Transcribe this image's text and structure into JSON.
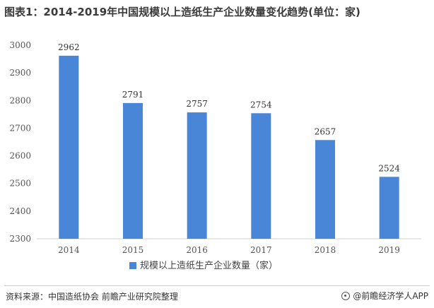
{
  "title": "图表1：2014-2019年中国规模以上造纸生产企业数量变化趋势(单位：家)",
  "chart_data": {
    "type": "bar",
    "categories": [
      "2014",
      "2015",
      "2016",
      "2017",
      "2018",
      "2019"
    ],
    "series": [
      {
        "name": "规模以上造纸生产企业数量（家）",
        "values": [
          2962,
          2791,
          2757,
          2754,
          2657,
          2524
        ]
      }
    ],
    "ylim": [
      2300,
      3000
    ],
    "yticks": [
      2300,
      2400,
      2500,
      2600,
      2700,
      2800,
      2900,
      3000
    ],
    "data_labels": [
      "2962",
      "2791",
      "2757",
      "2754",
      "2657",
      "2524"
    ],
    "bar_color": "#4a86d8",
    "legend_position": "bottom-center",
    "grid": false
  },
  "footer": {
    "source": "资料来源：中国造纸协会 前瞻产业研究院整理",
    "brand": "@前瞻经济学人APP"
  }
}
